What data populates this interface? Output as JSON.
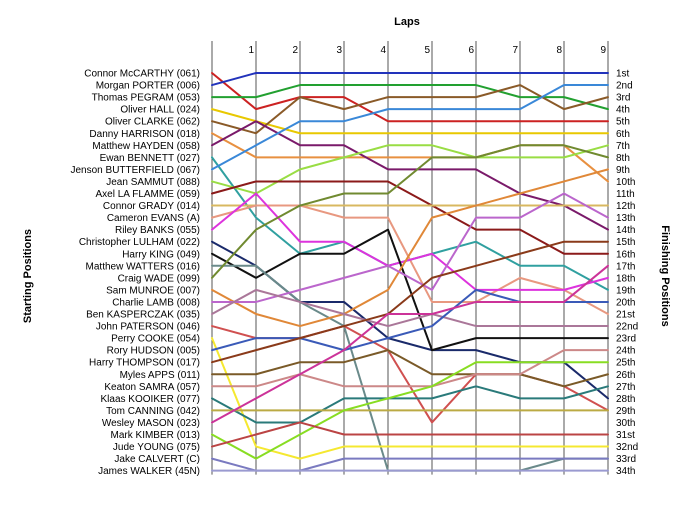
{
  "chart_data": {
    "type": "line",
    "title": "Laps",
    "xlabel": "Starting Positions",
    "ylabel": "Finishing Positions",
    "x": [
      0,
      1,
      2,
      3,
      4,
      5,
      6,
      7,
      8,
      9
    ],
    "x_tick_labels": [
      "1",
      "2",
      "3",
      "4",
      "5",
      "6",
      "7",
      "8",
      "9"
    ],
    "ylim": [
      1,
      34
    ],
    "y_inverted": true,
    "grid": true,
    "start_labels": [
      "Connor McCARTHY (061)",
      "Morgan PORTER (006)",
      "Thomas PEGRAM (053)",
      "Oliver HALL (024)",
      "Oliver CLARKE (062)",
      "Danny HARRISON (018)",
      "Matthew HAYDEN (058)",
      "Ewan BENNETT (027)",
      "Jenson BUTTERFIELD (067)",
      "Jean SAMMUT (088)",
      "Axel LA FLAMME (059)",
      "Connor GRADY (014)",
      "Cameron EVANS (A)",
      "Riley BANKS (055)",
      "Christopher LULHAM (022)",
      "Harry KING (049)",
      "Matthew WATTERS (016)",
      "Craig WADE (099)",
      "Sam MUNROE (007)",
      "Charlie LAMB (008)",
      "Ben KASPERCZAK (035)",
      "John PATERSON (046)",
      "Perry COOKE (054)",
      "Rory HUDSON (005)",
      "Harry THOMPSON (017)",
      "Myles APPS (011)",
      "Keaton SAMRA (057)",
      "Klaas KOOIKER (077)",
      "Tom CANNING (042)",
      "Wesley MASON (023)",
      "Mark KIMBER (013)",
      "Jude YOUNG (075)",
      "Jake CALVERT (C)",
      "James WALKER (45N)"
    ],
    "finish_labels": [
      "1st",
      "2nd",
      "3rd",
      "4th",
      "5th",
      "6th",
      "7th",
      "8th",
      "9th",
      "10th",
      "11th",
      "12th",
      "13th",
      "14th",
      "15th",
      "16th",
      "17th",
      "18th",
      "19th",
      "20th",
      "21st",
      "22nd",
      "23rd",
      "24th",
      "25th",
      "26th",
      "27th",
      "28th",
      "29th",
      "30th",
      "31st",
      "32nd",
      "33rd",
      "34th"
    ],
    "series": [
      {
        "color": "#cc2222",
        "positions": [
          1,
          4,
          3,
          3,
          5,
          5,
          5,
          5,
          5,
          5
        ]
      },
      {
        "color": "#2233bb",
        "positions": [
          2,
          1,
          1,
          1,
          1,
          1,
          1,
          1,
          1,
          1
        ]
      },
      {
        "color": "#22a030",
        "positions": [
          3,
          3,
          2,
          2,
          2,
          2,
          2,
          3,
          3,
          4
        ]
      },
      {
        "color": "#e8c800",
        "positions": [
          4,
          5,
          6,
          6,
          6,
          6,
          6,
          6,
          6,
          6
        ]
      },
      {
        "color": "#8a5a28",
        "positions": [
          5,
          6,
          3,
          4,
          3,
          3,
          3,
          2,
          4,
          3
        ]
      },
      {
        "color": "#e89040",
        "positions": [
          6,
          8,
          8,
          8,
          8,
          8,
          8,
          7,
          7,
          10
        ]
      },
      {
        "color": "#7a1a6a",
        "positions": [
          7,
          5,
          7,
          7,
          9,
          9,
          9,
          11,
          12,
          14
        ]
      },
      {
        "color": "#30a0a0",
        "positions": [
          8,
          13,
          16,
          15,
          17,
          16,
          15,
          17,
          17,
          19
        ]
      },
      {
        "color": "#3a88d8",
        "positions": [
          9,
          7,
          5,
          5,
          4,
          4,
          4,
          4,
          2,
          2
        ]
      },
      {
        "color": "#99dd44",
        "positions": [
          10,
          11,
          9,
          8,
          7,
          7,
          8,
          8,
          8,
          7
        ]
      },
      {
        "color": "#8b1a1a",
        "positions": [
          11,
          10,
          10,
          10,
          10,
          12,
          14,
          14,
          16,
          16
        ]
      },
      {
        "color": "#d8b860",
        "positions": [
          12,
          12,
          12,
          12,
          12,
          12,
          12,
          12,
          12,
          12
        ]
      },
      {
        "color": "#e89880",
        "positions": [
          13,
          12,
          12,
          13,
          13,
          20,
          20,
          18,
          19,
          21
        ]
      },
      {
        "color": "#dd33dd",
        "positions": [
          14,
          11,
          15,
          15,
          17,
          16,
          19,
          19,
          19,
          18
        ]
      },
      {
        "color": "#1a2a6a",
        "positions": [
          15,
          17,
          20,
          20,
          23,
          24,
          24,
          25,
          25,
          28
        ]
      },
      {
        "color": "#111111",
        "positions": [
          16,
          18,
          16,
          16,
          14,
          24,
          23,
          23,
          23,
          23
        ]
      },
      {
        "color": "#6a8a8a",
        "positions": [
          17,
          17,
          20,
          22,
          34,
          34,
          34,
          34,
          33,
          33
        ]
      },
      {
        "color": "#708a30",
        "positions": [
          18,
          14,
          12,
          11,
          11,
          8,
          8,
          7,
          7,
          8
        ]
      },
      {
        "color": "#e08838",
        "positions": [
          19,
          21,
          22,
          21,
          19,
          13,
          12,
          11,
          10,
          9
        ]
      },
      {
        "color": "#bb66cc",
        "positions": [
          20,
          20,
          19,
          18,
          17,
          19,
          13,
          13,
          11,
          13
        ]
      },
      {
        "color": "#aa7799",
        "positions": [
          21,
          19,
          20,
          21,
          22,
          21,
          22,
          22,
          22,
          22
        ]
      },
      {
        "color": "#d05050",
        "positions": [
          22,
          23,
          23,
          22,
          24,
          30,
          26,
          26,
          27,
          29
        ]
      },
      {
        "color": "#f5e830",
        "positions": [
          23,
          32,
          33,
          32,
          32,
          32,
          32,
          32,
          32,
          32
        ]
      },
      {
        "color": "#3a5ab8",
        "positions": [
          24,
          23,
          23,
          24,
          23,
          22,
          19,
          20,
          20,
          20
        ]
      },
      {
        "color": "#8a3a1a",
        "positions": [
          25,
          24,
          23,
          22,
          21,
          18,
          17,
          16,
          15,
          15
        ]
      },
      {
        "color": "#7a5a28",
        "positions": [
          26,
          26,
          25,
          25,
          24,
          26,
          26,
          26,
          27,
          26
        ]
      },
      {
        "color": "#cc8888",
        "positions": [
          27,
          27,
          26,
          27,
          27,
          27,
          26,
          26,
          24,
          24
        ]
      },
      {
        "color": "#2a7a7a",
        "positions": [
          28,
          30,
          30,
          28,
          28,
          28,
          27,
          28,
          28,
          27
        ]
      },
      {
        "color": "#bbaa44",
        "positions": [
          29,
          29,
          29,
          29,
          29,
          29,
          29,
          29,
          29,
          29
        ]
      },
      {
        "color": "#cc3399",
        "positions": [
          30,
          28,
          26,
          24,
          21,
          21,
          20,
          20,
          20,
          17
        ]
      },
      {
        "color": "#88dd22",
        "positions": [
          31,
          33,
          31,
          29,
          28,
          27,
          25,
          25,
          25,
          25
        ]
      },
      {
        "color": "#bb4444",
        "positions": [
          32,
          31,
          30,
          31,
          31,
          31,
          31,
          31,
          31,
          31
        ]
      },
      {
        "color": "#7a7ac0",
        "positions": [
          33,
          34,
          34,
          33,
          33,
          33,
          33,
          33,
          33,
          33
        ]
      },
      {
        "color": "#9a9ad0",
        "positions": [
          34,
          34,
          34,
          34,
          34,
          34,
          34,
          34,
          34,
          34
        ]
      }
    ]
  }
}
